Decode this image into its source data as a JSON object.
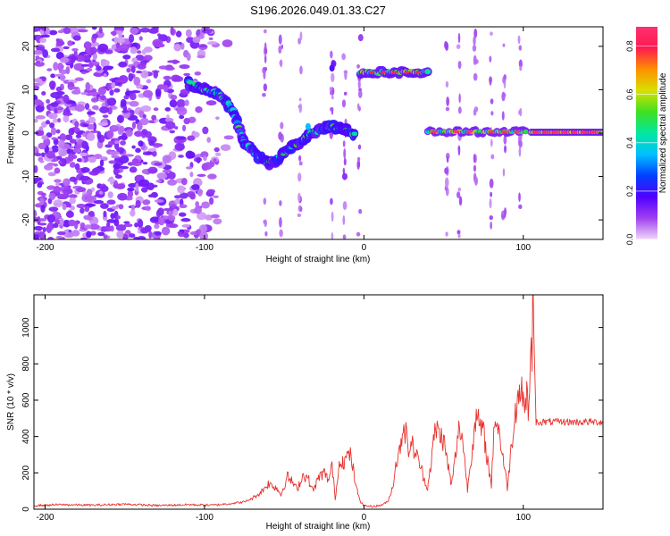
{
  "figure": {
    "title": "S196.2026.049.01.33.C27"
  },
  "chart_data": [
    {
      "type": "heatmap",
      "xlabel": "Height of straight line (km)",
      "ylabel": "Frequency (Hz)",
      "xlim": [
        -207,
        150
      ],
      "ylim": [
        -24.5,
        24.5
      ],
      "xticks": [
        -200,
        -100,
        0,
        100
      ],
      "yticks": [
        -20,
        -10,
        0,
        10,
        20
      ],
      "grid": false,
      "colorbar": {
        "label": "Normalized spectral amplitude",
        "range": [
          0,
          0.88
        ],
        "ticks": [
          "0.0",
          "0.2",
          "0.4",
          "0.6",
          "0.8"
        ],
        "tick_values": [
          0,
          0.2,
          0.4,
          0.6,
          0.8
        ],
        "stops": [
          "#f0d8f8",
          "#a040f0",
          "#5000ff",
          "#0040ff",
          "#00c0ff",
          "#00e8a0",
          "#40e020",
          "#d8e000",
          "#ff9000",
          "#ff1a50",
          "#ff3070"
        ]
      },
      "features": [
        {
          "name": "noise field",
          "x": [
            -207,
            -85
          ],
          "freq": [
            -24,
            24
          ],
          "level": 0.1
        },
        {
          "name": "descending branch",
          "points": [
            [
              -110,
              11.5
            ],
            [
              -100,
              10
            ],
            [
              -90,
              9
            ],
            [
              -82,
              5
            ],
            [
              -75,
              -2
            ],
            [
              -68,
              -5
            ],
            [
              -60,
              -7
            ],
            [
              -55,
              -6
            ],
            [
              -48,
              -4
            ],
            [
              -40,
              -2
            ],
            [
              -32,
              0
            ],
            [
              -25,
              1
            ],
            [
              -20,
              1.5
            ],
            [
              -12,
              1
            ],
            [
              -5,
              -0.5
            ]
          ],
          "level": 0.45
        },
        {
          "name": "band at 14 Hz",
          "x": [
            -2,
            40
          ],
          "freq": 14,
          "level": 0.7
        },
        {
          "name": "band near 0 Hz (segmented)",
          "x": [
            40,
            102
          ],
          "freq": 0.3,
          "level": 0.7
        },
        {
          "name": "band near 0 Hz (continuous)",
          "x": [
            105,
            150
          ],
          "freq": 0.2,
          "level": 0.75
        }
      ]
    },
    {
      "type": "line",
      "xlabel": "Height of straight line (km)",
      "ylabel": "SNR (10 * v/v)",
      "xlim": [
        -207,
        150
      ],
      "ylim": [
        0,
        1180
      ],
      "xticks": [
        -200,
        -100,
        0,
        100
      ],
      "yticks": [
        0,
        200,
        400,
        600,
        800,
        1000
      ],
      "grid": false,
      "series": [
        {
          "name": "SNR",
          "color": "#e8302c",
          "x": [
            -207,
            -190,
            -170,
            -150,
            -130,
            -110,
            -95,
            -85,
            -80,
            -75,
            -70,
            -65,
            -60,
            -55,
            -52,
            -48,
            -45,
            -42,
            -38,
            -35,
            -32,
            -28,
            -25,
            -22,
            -20,
            -18,
            -15,
            -12,
            -10,
            -8,
            -5,
            -2,
            0,
            5,
            10,
            15,
            18,
            20,
            22,
            25,
            28,
            30,
            35,
            38,
            40,
            45,
            50,
            55,
            60,
            62,
            65,
            70,
            75,
            80,
            82,
            85,
            90,
            95,
            98,
            100,
            104,
            106,
            108,
            115,
            125,
            135,
            150
          ],
          "y": [
            20,
            25,
            22,
            28,
            20,
            25,
            22,
            30,
            35,
            40,
            60,
            90,
            140,
            120,
            80,
            180,
            150,
            110,
            190,
            170,
            100,
            180,
            200,
            160,
            240,
            60,
            280,
            260,
            300,
            290,
            120,
            40,
            20,
            15,
            20,
            40,
            120,
            250,
            300,
            480,
            330,
            360,
            250,
            160,
            120,
            450,
            380,
            130,
            460,
            380,
            110,
            500,
            420,
            130,
            520,
            420,
            120,
            560,
            660,
            640,
            620,
            1180,
            480,
            480,
            480,
            480,
            480
          ]
        }
      ]
    }
  ]
}
